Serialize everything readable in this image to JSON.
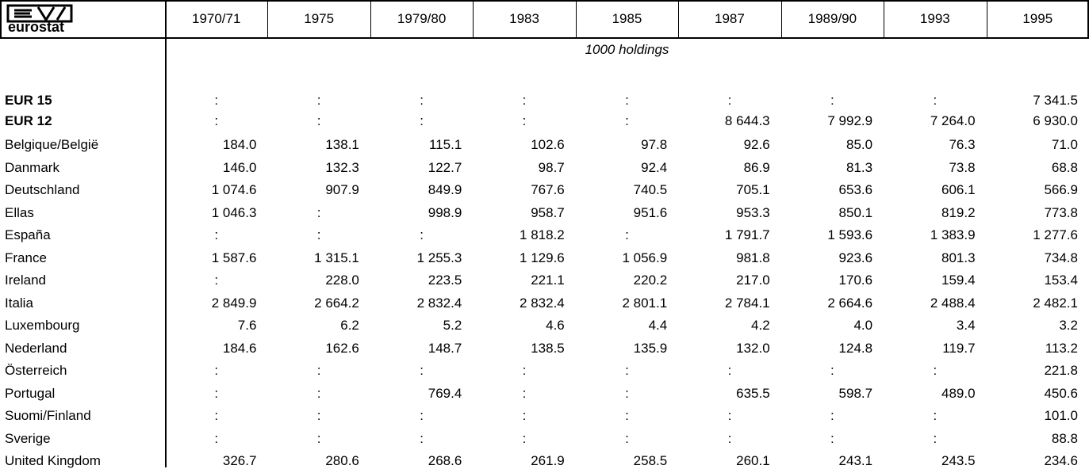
{
  "logo": {
    "text": "eurostat"
  },
  "table": {
    "columns": [
      "1970/71",
      "1975",
      "1979/80",
      "1983",
      "1985",
      "1987",
      "1989/90",
      "1993",
      "1995"
    ],
    "unit": "1000 holdings",
    "rows": [
      {
        "label": "EUR 15",
        "bold": true,
        "cells": [
          ":",
          ":",
          ":",
          ":",
          ":",
          ":",
          ":",
          ":",
          "7 341.5"
        ]
      },
      {
        "label": "EUR 12",
        "bold": true,
        "cells": [
          ":",
          ":",
          ":",
          ":",
          ":",
          "8 644.3",
          "7 992.9",
          "7 264.0",
          "6 930.0"
        ]
      },
      {
        "label": "Belgique/België",
        "cells": [
          "184.0",
          "138.1",
          "115.1",
          "102.6",
          "97.8",
          "92.6",
          "85.0",
          "76.3",
          "71.0"
        ]
      },
      {
        "label": "Danmark",
        "cells": [
          "146.0",
          "132.3",
          "122.7",
          "98.7",
          "92.4",
          "86.9",
          "81.3",
          "73.8",
          "68.8"
        ]
      },
      {
        "label": "Deutschland",
        "cells": [
          "1 074.6",
          "907.9",
          "849.9",
          "767.6",
          "740.5",
          "705.1",
          "653.6",
          "606.1",
          "566.9"
        ]
      },
      {
        "label": "Ellas",
        "cells": [
          "1 046.3",
          ":",
          "998.9",
          "958.7",
          "951.6",
          "953.3",
          "850.1",
          "819.2",
          "773.8"
        ]
      },
      {
        "label": "España",
        "cells": [
          ":",
          ":",
          ":",
          "1 818.2",
          ":",
          "1 791.7",
          "1 593.6",
          "1 383.9",
          "1 277.6"
        ]
      },
      {
        "label": "France",
        "cells": [
          "1 587.6",
          "1 315.1",
          "1 255.3",
          "1 129.6",
          "1 056.9",
          "981.8",
          "923.6",
          "801.3",
          "734.8"
        ]
      },
      {
        "label": "Ireland",
        "cells": [
          ":",
          "228.0",
          "223.5",
          "221.1",
          "220.2",
          "217.0",
          "170.6",
          "159.4",
          "153.4"
        ]
      },
      {
        "label": "Italia",
        "cells": [
          "2 849.9",
          "2 664.2",
          "2 832.4",
          "2 832.4",
          "2 801.1",
          "2 784.1",
          "2 664.6",
          "2 488.4",
          "2 482.1"
        ]
      },
      {
        "label": "Luxembourg",
        "cells": [
          "7.6",
          "6.2",
          "5.2",
          "4.6",
          "4.4",
          "4.2",
          "4.0",
          "3.4",
          "3.2"
        ]
      },
      {
        "label": "Nederland",
        "cells": [
          "184.6",
          "162.6",
          "148.7",
          "138.5",
          "135.9",
          "132.0",
          "124.8",
          "119.7",
          "113.2"
        ]
      },
      {
        "label": "Österreich",
        "cells": [
          ":",
          ":",
          ":",
          ":",
          ":",
          ":",
          ":",
          ":",
          "221.8"
        ]
      },
      {
        "label": "Portugal",
        "cells": [
          ":",
          ":",
          "769.4",
          ":",
          ":",
          "635.5",
          "598.7",
          "489.0",
          "450.6"
        ]
      },
      {
        "label": "Suomi/Finland",
        "cells": [
          ":",
          ":",
          ":",
          ":",
          ":",
          ":",
          ":",
          ":",
          "101.0"
        ]
      },
      {
        "label": "Sverige",
        "cells": [
          ":",
          ":",
          ":",
          ":",
          ":",
          ":",
          ":",
          ":",
          "88.8"
        ]
      },
      {
        "label": "United Kingdom",
        "cells": [
          "326.7",
          "280.6",
          "268.6",
          "261.9",
          "258.5",
          "260.1",
          "243.1",
          "243.5",
          "234.6"
        ]
      }
    ]
  }
}
